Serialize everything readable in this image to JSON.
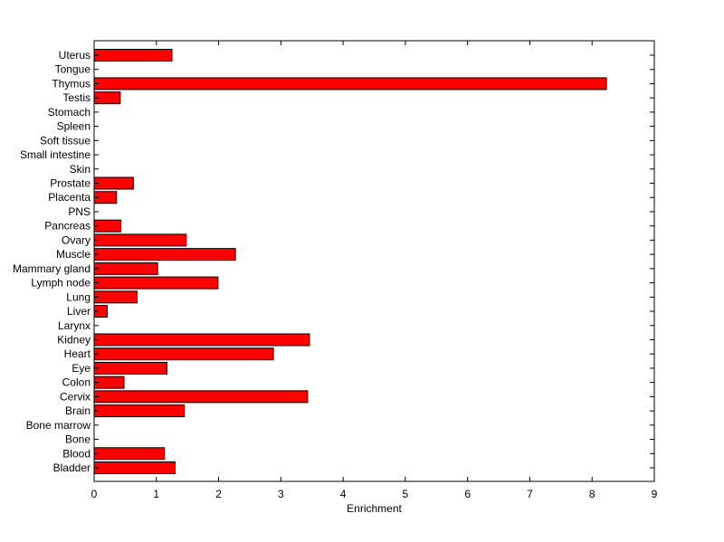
{
  "chart_data": {
    "type": "bar",
    "orientation": "horizontal",
    "categories": [
      "Uterus",
      "Tongue",
      "Thymus",
      "Testis",
      "Stomach",
      "Spleen",
      "Soft tissue",
      "Small intestine",
      "Skin",
      "Prostate",
      "Placenta",
      "PNS",
      "Pancreas",
      "Ovary",
      "Muscle",
      "Mammary gland",
      "Lymph node",
      "Lung",
      "Liver",
      "Larynx",
      "Kidney",
      "Heart",
      "Eye",
      "Colon",
      "Cervix",
      "Brain",
      "Bone marrow",
      "Bone",
      "Blood",
      "Bladder"
    ],
    "values": [
      1.25,
      0,
      8.23,
      0.42,
      0,
      0,
      0,
      0,
      0,
      0.63,
      0.36,
      0,
      0.43,
      1.48,
      2.27,
      1.02,
      1.99,
      0.69,
      0.21,
      0,
      3.46,
      2.88,
      1.17,
      0.48,
      3.43,
      1.45,
      0,
      0,
      1.13,
      1.3
    ],
    "xlabel": "Enrichment",
    "xlim": [
      0,
      9
    ],
    "xticks": [
      0,
      1,
      2,
      3,
      4,
      5,
      6,
      7,
      8,
      9
    ],
    "grid": false,
    "bar_color": "#ff0000",
    "bar_edge_color": "#000000"
  }
}
